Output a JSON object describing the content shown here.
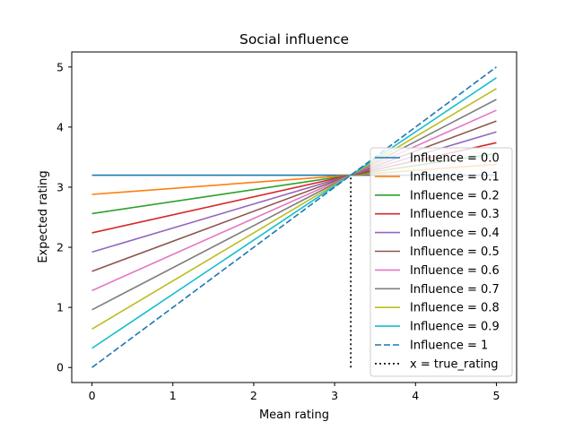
{
  "chart_data": {
    "type": "line",
    "title": "Social influence",
    "xlabel": "Mean rating",
    "ylabel": "Expected rating",
    "xlim": [
      -0.25,
      5.25
    ],
    "ylim": [
      -0.25,
      5.25
    ],
    "xticks": [
      0,
      1,
      2,
      3,
      4,
      5
    ],
    "yticks": [
      0,
      1,
      2,
      3,
      4,
      5
    ],
    "x": [
      0,
      5
    ],
    "true_rating": 3.2,
    "grid": false,
    "legend_position": "right",
    "series": [
      {
        "name": "Influence = 0.0",
        "values": [
          3.2,
          3.2
        ],
        "color": "#1f77b4",
        "style": "solid"
      },
      {
        "name": "Influence = 0.1",
        "values": [
          2.88,
          3.38
        ],
        "color": "#ff7f0e",
        "style": "solid"
      },
      {
        "name": "Influence = 0.2",
        "values": [
          2.56,
          3.56
        ],
        "color": "#2ca02c",
        "style": "solid"
      },
      {
        "name": "Influence = 0.3",
        "values": [
          2.24,
          3.74
        ],
        "color": "#d62728",
        "style": "solid"
      },
      {
        "name": "Influence = 0.4",
        "values": [
          1.92,
          3.92
        ],
        "color": "#9467bd",
        "style": "solid"
      },
      {
        "name": "Influence = 0.5",
        "values": [
          1.6,
          4.1
        ],
        "color": "#8c564b",
        "style": "solid"
      },
      {
        "name": "Influence = 0.6",
        "values": [
          1.28,
          4.28
        ],
        "color": "#e377c2",
        "style": "solid"
      },
      {
        "name": "Influence = 0.7",
        "values": [
          0.96,
          4.46
        ],
        "color": "#7f7f7f",
        "style": "solid"
      },
      {
        "name": "Influence = 0.8",
        "values": [
          0.64,
          4.64
        ],
        "color": "#bcbd22",
        "style": "solid"
      },
      {
        "name": "Influence = 0.9",
        "values": [
          0.32,
          4.82
        ],
        "color": "#17becf",
        "style": "solid"
      },
      {
        "name": "Influence = 1",
        "values": [
          0,
          5
        ],
        "color": "#1f77b4",
        "style": "dashed"
      }
    ],
    "vline": {
      "name": "x = true_rating",
      "x": 3.2,
      "y_range": [
        0,
        3.2
      ],
      "color": "#000000",
      "style": "dotted"
    }
  }
}
